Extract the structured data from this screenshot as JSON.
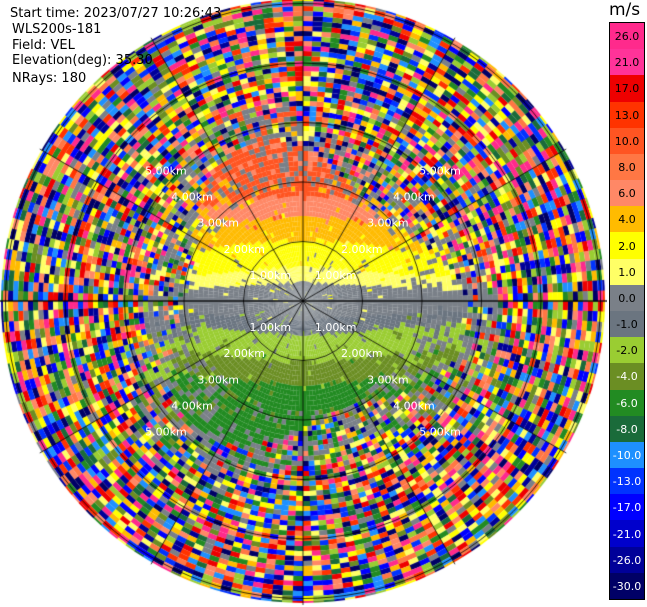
{
  "header": {
    "start_time": "Start time: 2023/07/27 10:26:43",
    "instrument": "WLS200s-181",
    "field": "Field: VEL",
    "elevation": "Elevation(deg): 35.30",
    "nrays": "NRays: 180"
  },
  "colorbar": {
    "unit": "m/s",
    "ticks": [
      "26.0",
      "21.0",
      "17.0",
      "13.0",
      "10.0",
      "8.0",
      "6.0",
      "4.0",
      "2.0",
      "1.0",
      "0.0",
      "-1.0",
      "-2.0",
      "-4.0",
      "-6.0",
      "-8.0",
      "-10.0",
      "-13.0",
      "-17.0",
      "-21.0",
      "-26.0",
      "-30.0"
    ],
    "colors": [
      "#ff2a8c",
      "#ff3399",
      "#ee0000",
      "#ff3300",
      "#ff5522",
      "#ff7744",
      "#ff8866",
      "#ffbb00",
      "#ffff00",
      "#ffff66",
      "#7a8088",
      "#6b7580",
      "#9acd32",
      "#6b8e23",
      "#228b22",
      "#1a6b3a",
      "#1e90ff",
      "#0033ff",
      "#0000ff",
      "#0000cc",
      "#000099",
      "#000066"
    ]
  },
  "rings": [
    {
      "label": "1.00km"
    },
    {
      "label": "2.00km"
    },
    {
      "label": "3.00km"
    },
    {
      "label": "4.00km"
    },
    {
      "label": "5.00km"
    }
  ]
}
